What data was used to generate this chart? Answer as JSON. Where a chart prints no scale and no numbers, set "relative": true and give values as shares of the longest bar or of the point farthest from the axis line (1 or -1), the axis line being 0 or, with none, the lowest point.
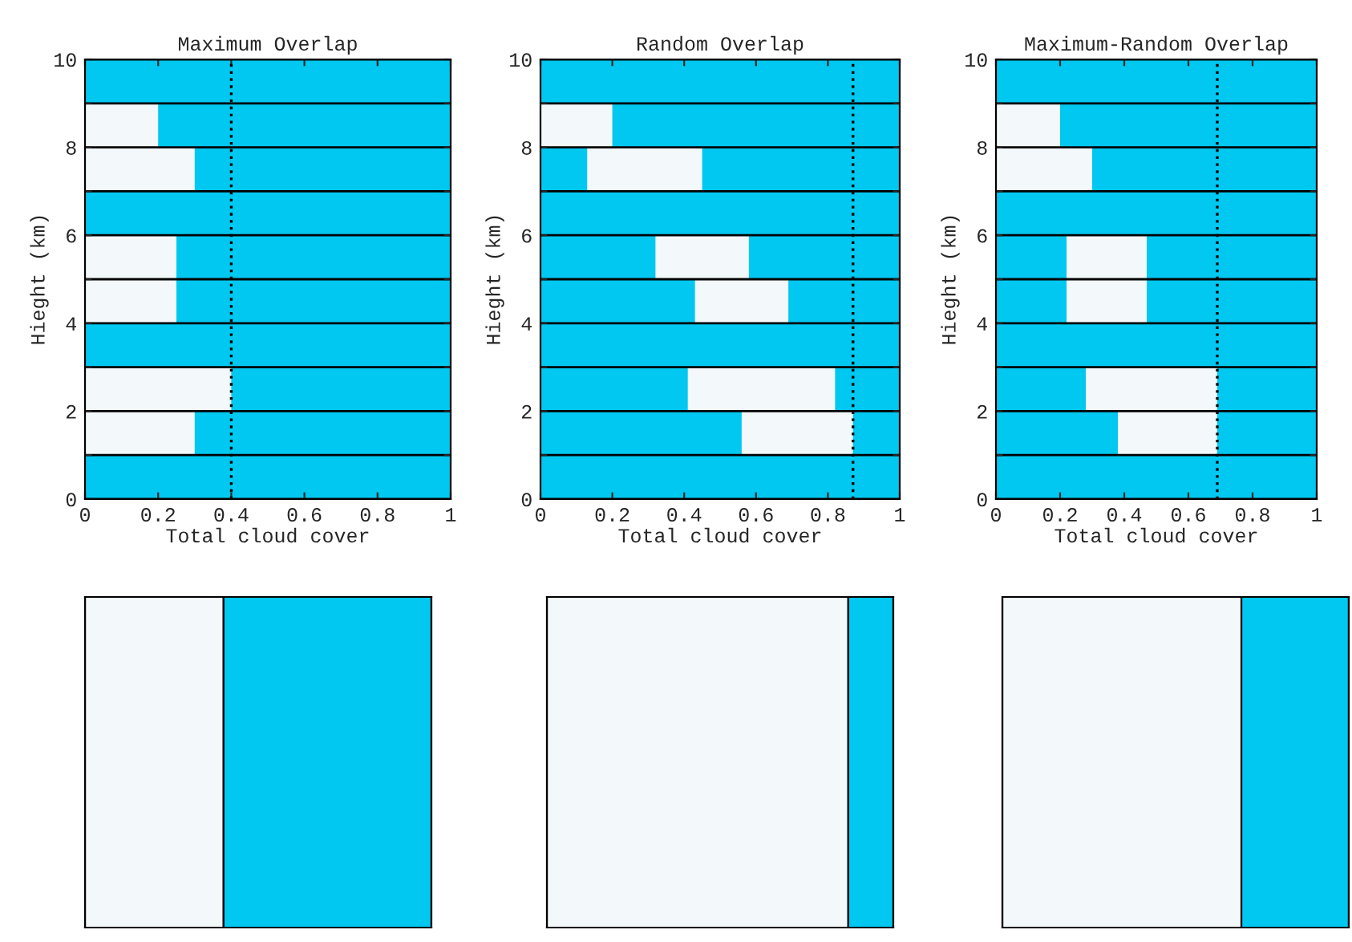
{
  "chart_data": [
    {
      "type": "bar",
      "orientation": "horizontal",
      "title": "Maximum Overlap",
      "xlabel": "Total cloud cover",
      "ylabel": "Hieght (km)",
      "x": [
        8.5,
        7.5,
        5.5,
        4.5,
        2.5,
        1.5
      ],
      "base": [
        0,
        0,
        0,
        0,
        0,
        0
      ],
      "values": [
        0.2,
        0.3,
        0.25,
        0.25,
        0.4,
        0.3
      ],
      "color": "#f3f8fa",
      "xlim": [
        0,
        1
      ],
      "ylim": [
        0,
        10
      ],
      "xticks": [
        0,
        0.2,
        0.4,
        0.6,
        0.8,
        1
      ],
      "yticks": [
        0,
        {
          "value": 1,
          "label": null
        },
        2,
        {
          "value": 3,
          "label": null
        },
        4,
        {
          "value": 5,
          "label": null
        },
        6,
        {
          "value": 7,
          "label": null
        },
        8,
        {
          "value": 9,
          "label": null
        },
        10
      ],
      "grid": "y",
      "bands": [
        {
          "axis": "x",
          "from": 0,
          "to": 1,
          "color": "#00c8f0"
        }
      ],
      "ref_lines": [
        {
          "axis": "x",
          "value": 0.4,
          "line_style": "dotted"
        }
      ]
    },
    {
      "type": "bar",
      "orientation": "horizontal",
      "title": "Random Overlap",
      "xlabel": "Total cloud cover",
      "ylabel": "Hieght (km)",
      "x": [
        8.5,
        7.5,
        5.5,
        4.5,
        2.5,
        1.5
      ],
      "base": [
        0,
        0.13,
        0.32,
        0.43,
        0.41,
        0.56
      ],
      "values": [
        0.2,
        0.32,
        0.26,
        0.26,
        0.41,
        0.31
      ],
      "color": "#f3f8fa",
      "xlim": [
        0,
        1
      ],
      "ylim": [
        0,
        10
      ],
      "xticks": [
        0,
        0.2,
        0.4,
        0.6,
        0.8,
        1
      ],
      "yticks": [
        0,
        {
          "value": 1,
          "label": null
        },
        2,
        {
          "value": 3,
          "label": null
        },
        4,
        {
          "value": 5,
          "label": null
        },
        6,
        {
          "value": 7,
          "label": null
        },
        8,
        {
          "value": 9,
          "label": null
        },
        10
      ],
      "grid": "y",
      "bands": [
        {
          "axis": "x",
          "from": 0,
          "to": 1,
          "color": "#00c8f0"
        }
      ],
      "ref_lines": [
        {
          "axis": "x",
          "value": 0.87,
          "line_style": "dotted"
        }
      ]
    },
    {
      "type": "bar",
      "orientation": "horizontal",
      "title": "Maximum-Random Overlap",
      "xlabel": "Total cloud cover",
      "ylabel": "Hieght (km)",
      "x": [
        8.5,
        7.5,
        5.5,
        4.5,
        2.5,
        1.5
      ],
      "base": [
        0,
        0,
        0.22,
        0.22,
        0.28,
        0.38
      ],
      "values": [
        0.2,
        0.3,
        0.25,
        0.25,
        0.41,
        0.31
      ],
      "color": "#f3f8fa",
      "xlim": [
        0,
        1
      ],
      "ylim": [
        0,
        10
      ],
      "xticks": [
        0,
        0.2,
        0.4,
        0.6,
        0.8,
        1
      ],
      "yticks": [
        0,
        {
          "value": 1,
          "label": null
        },
        2,
        {
          "value": 3,
          "label": null
        },
        4,
        {
          "value": 5,
          "label": null
        },
        6,
        {
          "value": 7,
          "label": null
        },
        8,
        {
          "value": 9,
          "label": null
        },
        10
      ],
      "grid": "y",
      "bands": [
        {
          "axis": "x",
          "from": 0,
          "to": 1,
          "color": "#00c8f0"
        }
      ],
      "ref_lines": [
        {
          "axis": "x",
          "value": 0.69,
          "line_style": "dotted"
        }
      ]
    },
    {
      "type": "bar",
      "orientation": "horizontal",
      "stacked": true,
      "relative": true,
      "categories": [
        null
      ],
      "series": [
        {
          "color": "#f3f8fa",
          "values": [
            0.4
          ]
        },
        {
          "color": "#00c8f0",
          "values": [
            0.6
          ]
        }
      ]
    },
    {
      "type": "bar",
      "orientation": "horizontal",
      "stacked": true,
      "relative": true,
      "categories": [
        null
      ],
      "series": [
        {
          "color": "#f3f8fa",
          "values": [
            0.87
          ]
        },
        {
          "color": "#00c8f0",
          "values": [
            0.13
          ]
        }
      ]
    },
    {
      "type": "bar",
      "orientation": "horizontal",
      "stacked": true,
      "relative": true,
      "categories": [
        null
      ],
      "series": [
        {
          "color": "#f3f8fa",
          "values": [
            0.69
          ]
        },
        {
          "color": "#00c8f0",
          "values": [
            0.31
          ]
        }
      ]
    }
  ]
}
